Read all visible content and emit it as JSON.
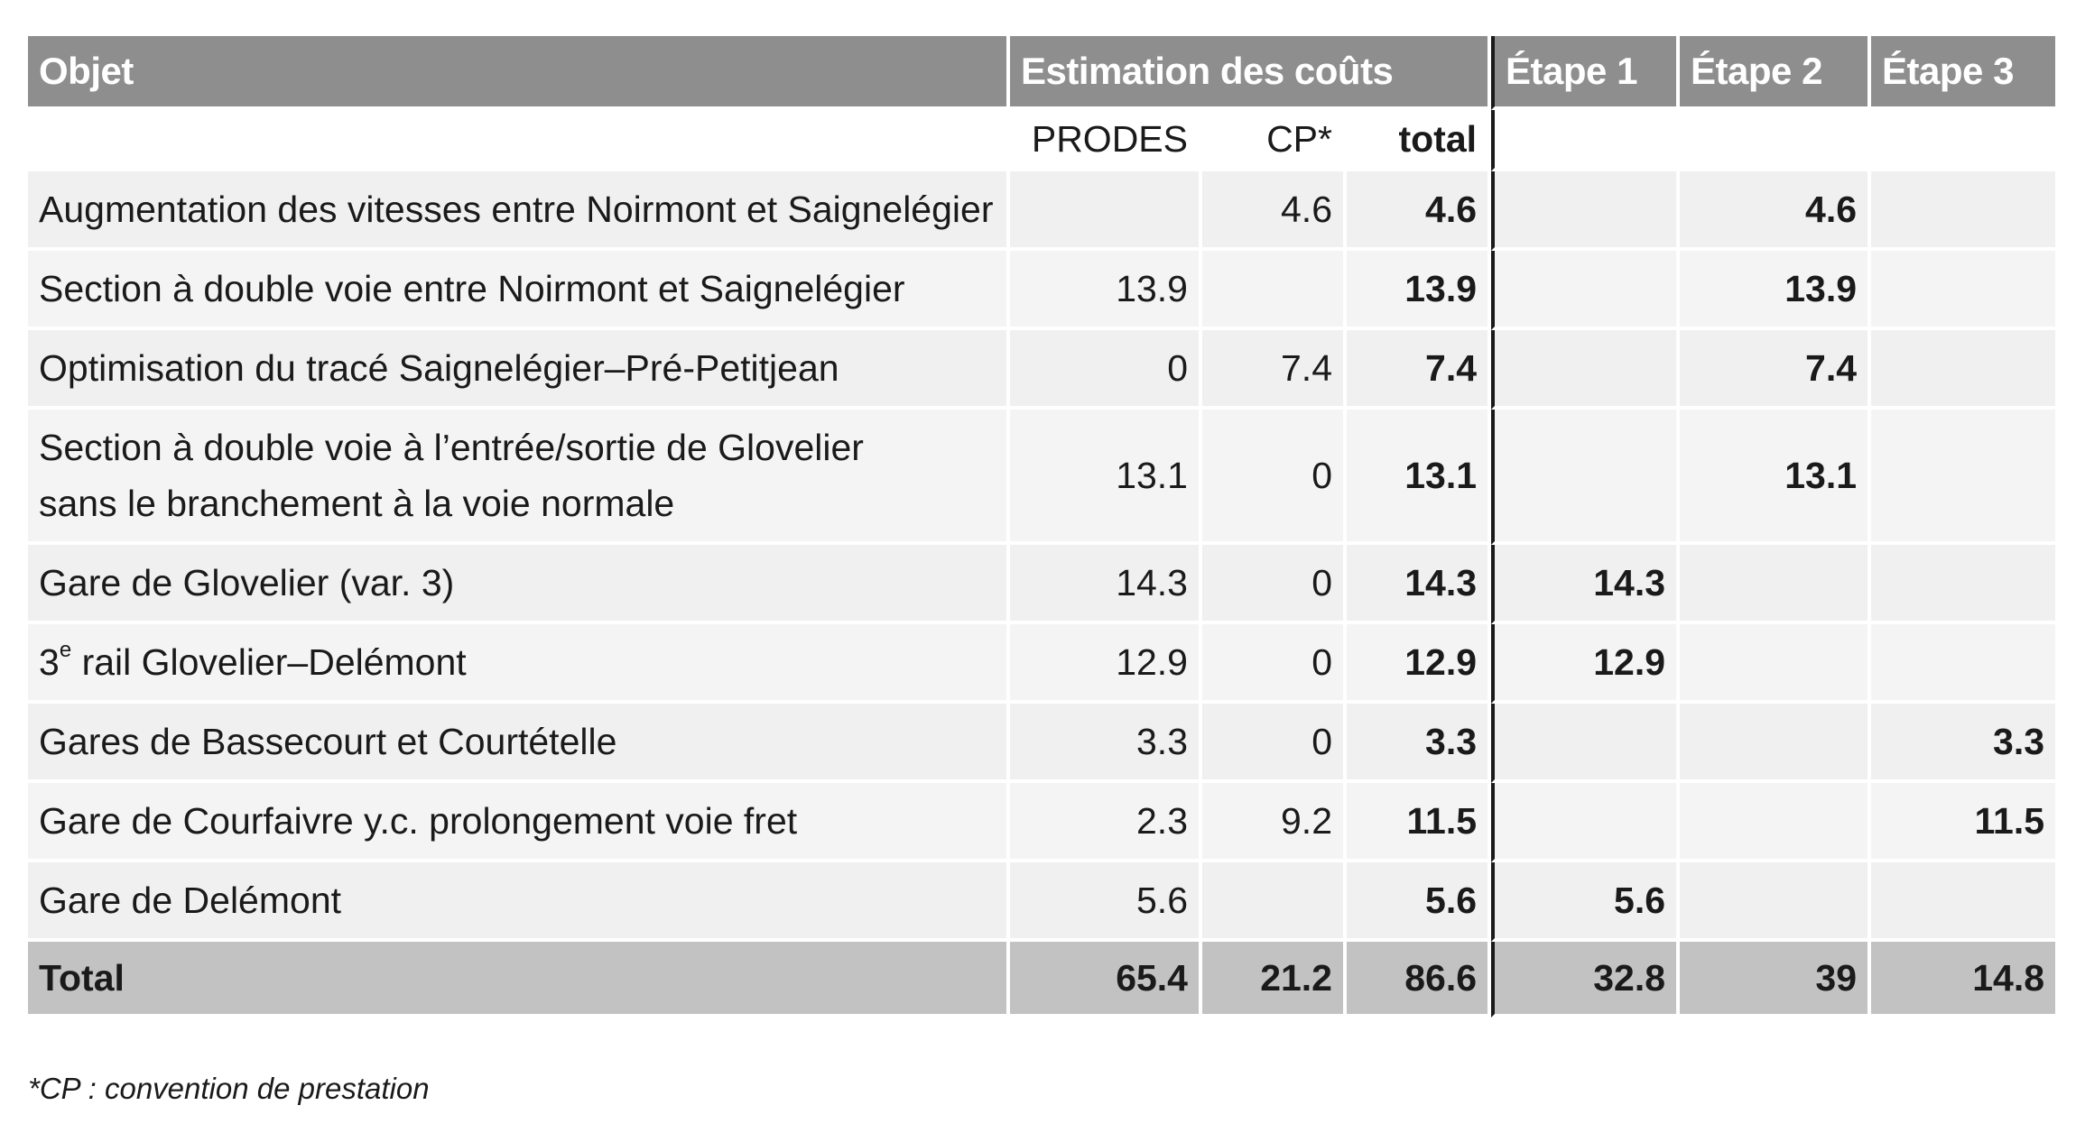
{
  "header": {
    "object": "Objet",
    "estimation": "Estimation des coûts",
    "stage1": "Étape 1",
    "stage2": "Étape 2",
    "stage3": "Étape 3"
  },
  "subheader": {
    "prodes": "PRODES",
    "cp": "CP*",
    "total": "total"
  },
  "rows": [
    {
      "object": "Augmentation des vitesses entre Noirmont et Saignelégier",
      "prodes": "",
      "cp": "4.6",
      "total": "4.6",
      "e1": "",
      "e2": "4.6",
      "e3": ""
    },
    {
      "object": "Section à double voie entre Noirmont et Saignelégier",
      "prodes": "13.9",
      "cp": "",
      "total": "13.9",
      "e1": "",
      "e2": "13.9",
      "e3": ""
    },
    {
      "object": "Optimisation du tracé Saignelégier–Pré-Petitjean",
      "prodes": "0",
      "cp": "7.4",
      "total": "7.4",
      "e1": "",
      "e2": "7.4",
      "e3": ""
    },
    {
      "object_line1": "Section à double voie à l’entrée/sortie de Glovelier",
      "object_line2": "sans le branchement à la voie normale",
      "prodes": "13.1",
      "cp": "0",
      "total": "13.1",
      "e1": "",
      "e2": "13.1",
      "e3": ""
    },
    {
      "object": "Gare de Glovelier (var. 3)",
      "prodes": "14.3",
      "cp": "0",
      "total": "14.3",
      "e1": "14.3",
      "e2": "",
      "e3": ""
    },
    {
      "object_prefix": "3",
      "object_sup": "e",
      "object_rest": " rail Glovelier–Delémont",
      "prodes": "12.9",
      "cp": "0",
      "total": "12.9",
      "e1": "12.9",
      "e2": "",
      "e3": ""
    },
    {
      "object": "Gares de Bassecourt et Courtételle",
      "prodes": "3.3",
      "cp": "0",
      "total": "3.3",
      "e1": "",
      "e2": "",
      "e3": "3.3"
    },
    {
      "object": "Gare de Courfaivre y.c. prolongement voie fret",
      "prodes": "2.3",
      "cp": "9.2",
      "total": "11.5",
      "e1": "",
      "e2": "",
      "e3": "11.5"
    },
    {
      "object": "Gare de Delémont",
      "prodes": "5.6",
      "cp": "",
      "total": "5.6",
      "e1": "5.6",
      "e2": "",
      "e3": ""
    }
  ],
  "totals": {
    "label": "Total",
    "prodes": "65.4",
    "cp": "21.2",
    "total": "86.6",
    "e1": "32.8",
    "e2": "39",
    "e3": "14.8"
  },
  "footnote": "*CP : convention de prestation"
}
